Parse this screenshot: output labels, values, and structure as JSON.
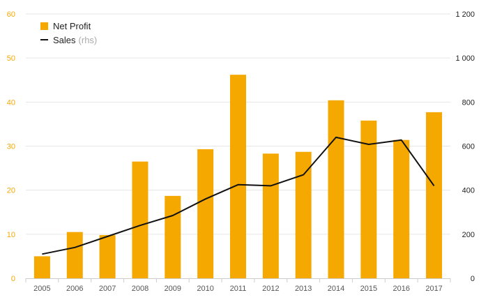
{
  "chart_data": {
    "type": "bar",
    "categories": [
      "2005",
      "2006",
      "2007",
      "2008",
      "2009",
      "2010",
      "2011",
      "2012",
      "2013",
      "2014",
      "2015",
      "2016",
      "2017"
    ],
    "series": [
      {
        "name": "Net Profit",
        "type": "bar",
        "axis": "left",
        "color": "#f5a800",
        "values": [
          5,
          10.5,
          9.8,
          26.5,
          18.7,
          29.3,
          46.2,
          28.3,
          28.7,
          40.4,
          35.8,
          31.4,
          37.7
        ]
      },
      {
        "name": "Sales",
        "type": "line",
        "axis": "right",
        "color": "#111111",
        "values": [
          110,
          140,
          190,
          240,
          285,
          360,
          425,
          420,
          470,
          640,
          608,
          628,
          420
        ]
      }
    ],
    "legend": {
      "net_profit": "Net Profit",
      "sales": "Sales",
      "sales_suffix": "(rhs)"
    },
    "ylim_left": [
      0,
      60
    ],
    "yticks_left": [
      "0",
      "10",
      "20",
      "30",
      "40",
      "50",
      "60"
    ],
    "ylim_right": [
      0,
      1200
    ],
    "yticks_right": [
      "0",
      "200",
      "400",
      "600",
      "800",
      "1 000",
      "1 200"
    ],
    "grid": true,
    "legend_position": "top-left"
  }
}
